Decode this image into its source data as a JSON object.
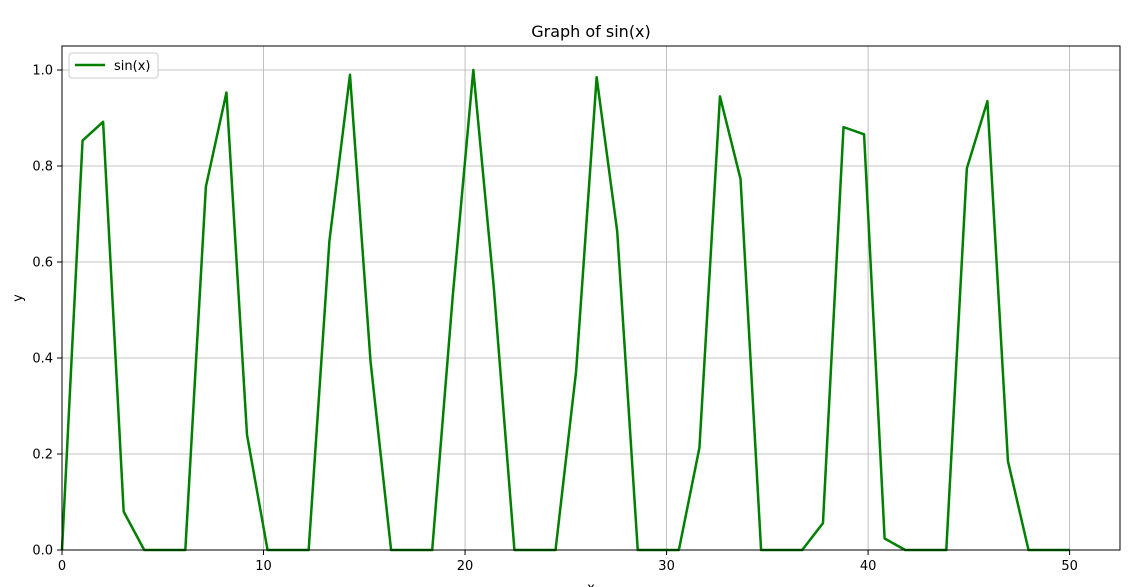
{
  "chart_data": {
    "type": "line",
    "title": "Graph of sin(x)",
    "xlabel": "x",
    "ylabel": "y",
    "xlim": [
      0,
      52.5
    ],
    "ylim": [
      0,
      1.05
    ],
    "xticks": [
      0,
      10,
      20,
      30,
      40,
      50
    ],
    "yticks": [
      0.0,
      0.2,
      0.4,
      0.6,
      0.8,
      1.0
    ],
    "xtick_labels": [
      "0",
      "10",
      "20",
      "30",
      "40",
      "50"
    ],
    "ytick_labels": [
      "0.0",
      "0.2",
      "0.4",
      "0.6",
      "0.8",
      "1.0"
    ],
    "grid": true,
    "legend_position": "top-left",
    "series": [
      {
        "name": "sin(x)",
        "color": "#008000",
        "x": [
          0,
          1.02,
          2.04,
          3.06,
          4.08,
          5.1,
          6.12,
          7.14,
          8.16,
          9.18,
          10.2,
          11.22,
          12.24,
          13.27,
          14.29,
          15.31,
          16.33,
          17.35,
          18.37,
          19.39,
          20.41,
          21.43,
          22.45,
          23.47,
          24.49,
          25.51,
          26.53,
          27.55,
          28.57,
          29.59,
          30.61,
          31.63,
          32.65,
          33.67,
          34.69,
          35.71,
          36.73,
          37.76,
          38.78,
          39.8,
          40.82,
          41.84,
          42.86,
          43.88,
          44.9,
          45.92,
          46.94,
          47.96,
          48.98,
          50.0
        ],
        "y": [
          0.0,
          0.853,
          0.892,
          0.08,
          0.0,
          0.0,
          0.0,
          0.757,
          0.953,
          0.24,
          0.0,
          0.0,
          0.0,
          0.644,
          0.99,
          0.393,
          0.0,
          0.0,
          0.0,
          0.529,
          1.0,
          0.545,
          0.0,
          0.0,
          0.0,
          0.372,
          0.985,
          0.664,
          0.0,
          0.0,
          0.0,
          0.213,
          0.945,
          0.773,
          0.0,
          0.0,
          0.0,
          0.056,
          0.881,
          0.866,
          0.024,
          0.0,
          0.0,
          0.0,
          0.795,
          0.935,
          0.185,
          0.0,
          0.0,
          0.0
        ]
      }
    ]
  }
}
